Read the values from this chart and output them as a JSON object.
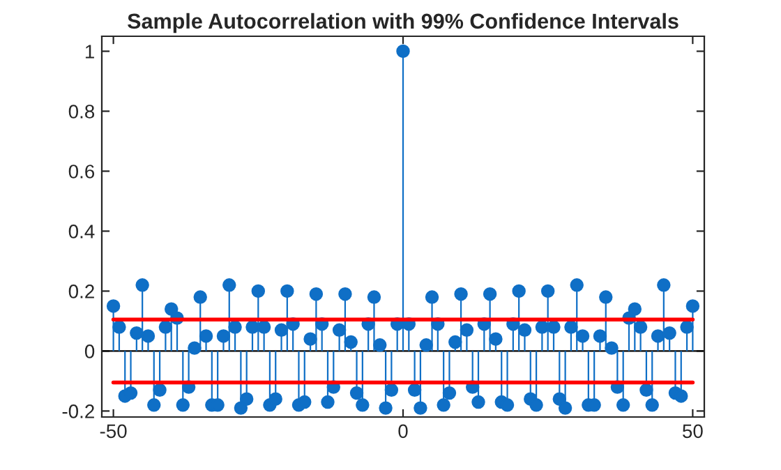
{
  "chart_data": {
    "type": "lollipop",
    "title": "Sample Autocorrelation with 99% Confidence Intervals",
    "xlim": [
      -52,
      52
    ],
    "xticks": [
      {
        "value": -50,
        "label": "-50"
      },
      0,
      50
    ],
    "ylim": [
      -0.22,
      1.05
    ],
    "yticks": [
      {
        "value": -0.2,
        "label": "-0.2"
      },
      0,
      {
        "value": 0.2,
        "label": "0.2"
      },
      {
        "value": 0.4,
        "label": "0.4"
      },
      {
        "value": 0.6,
        "label": "0.6"
      },
      {
        "value": 0.8,
        "label": "0.8"
      },
      1
    ],
    "grid": false,
    "ref_lines": [
      {
        "axis": "y",
        "value": 0,
        "color": "#000000"
      }
    ],
    "series": [
      {
        "marker": "circle",
        "color": "#0f6fc6",
        "x": [
          -50,
          -49,
          -48,
          -47,
          -46,
          -45,
          -44,
          -43,
          -42,
          -41,
          -40,
          -39,
          -38,
          -37,
          -36,
          -35,
          -34,
          -33,
          -32,
          -31,
          -30,
          -29,
          -28,
          -27,
          -26,
          -25,
          -24,
          -23,
          -22,
          -21,
          -20,
          -19,
          -18,
          -17,
          -16,
          -15,
          -14,
          -13,
          -12,
          -11,
          -10,
          -9,
          -8,
          -7,
          -6,
          -5,
          -4,
          -3,
          -2,
          -1,
          0,
          1,
          2,
          3,
          4,
          5,
          6,
          7,
          8,
          9,
          10,
          11,
          12,
          13,
          14,
          15,
          16,
          17,
          18,
          19,
          20,
          21,
          22,
          23,
          24,
          25,
          26,
          27,
          28,
          29,
          30,
          31,
          32,
          33,
          34,
          35,
          36,
          37,
          38,
          39,
          40,
          41,
          42,
          43,
          44,
          45,
          46,
          47,
          48,
          49,
          50
        ],
        "values": [
          0.15,
          0.08,
          -0.15,
          -0.14,
          0.06,
          0.22,
          0.05,
          -0.18,
          -0.13,
          0.08,
          0.14,
          0.11,
          -0.18,
          -0.12,
          0.01,
          0.18,
          0.05,
          -0.18,
          -0.18,
          0.05,
          0.22,
          0.08,
          -0.19,
          -0.16,
          0.08,
          0.2,
          0.08,
          -0.18,
          -0.16,
          0.07,
          0.2,
          0.09,
          -0.18,
          -0.17,
          0.04,
          0.19,
          0.09,
          -0.17,
          -0.12,
          0.07,
          0.19,
          0.03,
          -0.14,
          -0.18,
          0.09,
          0.18,
          0.02,
          -0.19,
          -0.13,
          0.09,
          1,
          0.09,
          -0.13,
          -0.19,
          0.02,
          0.18,
          0.09,
          -0.18,
          -0.14,
          0.03,
          0.19,
          0.07,
          -0.12,
          -0.17,
          0.09,
          0.19,
          0.04,
          -0.17,
          -0.18,
          0.09,
          0.2,
          0.07,
          -0.16,
          -0.18,
          0.08,
          0.2,
          0.08,
          -0.16,
          -0.19,
          0.08,
          0.22,
          0.05,
          -0.18,
          -0.18,
          0.05,
          0.18,
          0.01,
          -0.12,
          -0.18,
          0.11,
          0.14,
          0.08,
          -0.13,
          -0.18,
          0.05,
          0.22,
          0.06,
          -0.14,
          -0.15,
          0.08,
          0.15
        ]
      },
      {
        "type": "line",
        "color": "#ff0000",
        "x": [
          -50,
          50
        ],
        "values": [
          0.105,
          0.105
        ]
      },
      {
        "type": "line",
        "color": "#ff0000",
        "x": [
          -50,
          50
        ],
        "values": [
          -0.105,
          -0.105
        ]
      }
    ]
  }
}
